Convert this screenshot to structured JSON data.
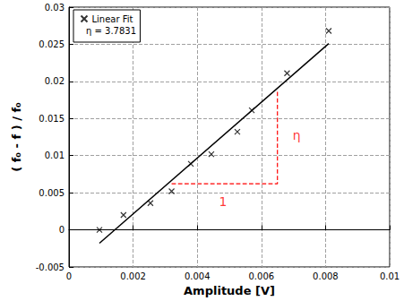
{
  "chart_data": {
    "type": "scatter",
    "x_label": "Amplitude [V]",
    "y_label": "( f₀ - f ) / f₀",
    "series": [
      {
        "name": "Linear Fit",
        "color": "#000000",
        "marker": "x",
        "x": [
          0.00095,
          0.0017,
          0.00254,
          0.0032,
          0.0038,
          0.00444,
          0.00525,
          0.0057,
          0.0068,
          0.0081
        ],
        "values": [
          0.0,
          0.002,
          0.0036,
          0.0052,
          0.0089,
          0.0102,
          0.0132,
          0.0161,
          0.0211,
          0.0268
        ]
      }
    ],
    "fit": {
      "color": "#000000",
      "line_style": "solid",
      "x": [
        0.00095,
        0.0081
      ],
      "values": [
        -0.0018,
        0.0251
      ]
    },
    "legend_text": "η = 3.7831",
    "legend": "upper left",
    "slope_triangle": {
      "color": "#ff0000",
      "line_style": "dashed",
      "x": [
        0.0032,
        0.0065,
        0.0065
      ],
      "values": [
        0.0062,
        0.0062,
        0.0186
      ]
    },
    "annotations": [
      {
        "text": "1",
        "x": 0.0048,
        "y": 0.0038,
        "color": "#ff0000"
      },
      {
        "text": "η",
        "x": 0.0071,
        "y": 0.0128,
        "color": "#ff0000"
      }
    ],
    "xlim": [
      0,
      0.01
    ],
    "xticks": [
      0,
      0.002,
      0.004,
      0.006,
      0.008,
      0.01
    ],
    "ylim": [
      -0.005,
      0.03
    ],
    "yticks": [
      -0.005,
      0,
      0.005,
      0.01,
      0.015,
      0.02,
      0.025,
      0.03
    ],
    "grid": true
  }
}
